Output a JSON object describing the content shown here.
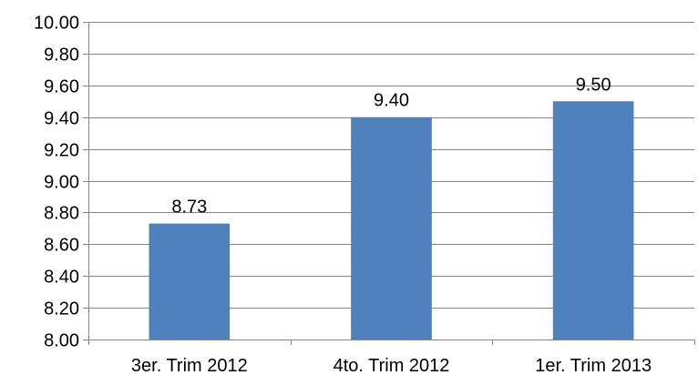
{
  "chart_data": {
    "type": "bar",
    "categories": [
      "3er. Trim 2012",
      "4to. Trim 2012",
      "1er. Trim 2013"
    ],
    "values": [
      8.73,
      9.4,
      9.5
    ],
    "data_labels": [
      "8.73",
      "9.40",
      "9.50"
    ],
    "title": "",
    "xlabel": "",
    "ylabel": "",
    "ylim": [
      8.0,
      10.0
    ],
    "yticks": [
      8.0,
      8.2,
      8.4,
      8.6,
      8.8,
      9.0,
      9.2,
      9.4,
      9.6,
      9.8,
      10.0
    ],
    "ytick_labels": [
      "8.00",
      "8.20",
      "8.40",
      "8.60",
      "8.80",
      "9.00",
      "9.20",
      "9.40",
      "9.60",
      "9.80",
      "10.00"
    ],
    "grid": true,
    "legend": "none",
    "bar_color": "#4F81BD",
    "grid_color": "#868686"
  }
}
